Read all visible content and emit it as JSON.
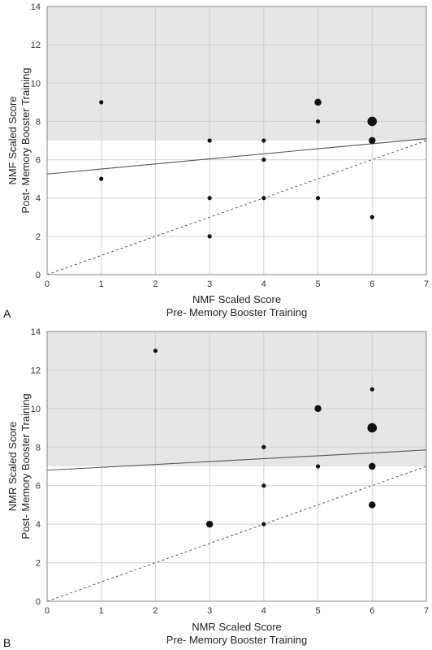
{
  "chart_data": [
    {
      "type": "scatter",
      "panel_label": "A",
      "xlabel_line1": "NMF Scaled Score",
      "xlabel_line2": "Pre- Memory Booster Training",
      "ylabel_line1": "NMF Scaled Score",
      "ylabel_line2": "Post- Memory Booster Training",
      "xlim": [
        0,
        7
      ],
      "ylim": [
        0,
        14
      ],
      "x_ticks": [
        "0",
        "1",
        "2",
        "3",
        "4",
        "5",
        "6",
        "7"
      ],
      "y_ticks": [
        "0",
        "2",
        "4",
        "6",
        "8",
        "10",
        "12",
        "14"
      ],
      "grid": true,
      "shaded_region_y_min": 7,
      "identity_line": {
        "style": "dashed",
        "from": [
          0,
          0
        ],
        "to": [
          7,
          7
        ]
      },
      "regression_line": {
        "style": "solid",
        "from": [
          0,
          5.25
        ],
        "to": [
          7,
          7.1
        ]
      },
      "points": [
        {
          "x": 1,
          "y": 9,
          "size": 1
        },
        {
          "x": 1,
          "y": 5,
          "size": 1
        },
        {
          "x": 3,
          "y": 7,
          "size": 1
        },
        {
          "x": 3,
          "y": 4,
          "size": 1
        },
        {
          "x": 3,
          "y": 2,
          "size": 1
        },
        {
          "x": 4,
          "y": 7,
          "size": 1
        },
        {
          "x": 4,
          "y": 6,
          "size": 1
        },
        {
          "x": 4,
          "y": 4,
          "size": 1
        },
        {
          "x": 5,
          "y": 9,
          "size": 2
        },
        {
          "x": 5,
          "y": 8,
          "size": 1
        },
        {
          "x": 5,
          "y": 4,
          "size": 1
        },
        {
          "x": 6,
          "y": 8,
          "size": 3
        },
        {
          "x": 6,
          "y": 7,
          "size": 2
        },
        {
          "x": 6,
          "y": 3,
          "size": 1
        }
      ]
    },
    {
      "type": "scatter",
      "panel_label": "B",
      "xlabel_line1": "NMR Scaled Score",
      "xlabel_line2": "Pre- Memory Booster Training",
      "ylabel_line1": "NMR Scaled Score",
      "ylabel_line2": "Post- Memory Booster Training",
      "xlim": [
        0,
        7
      ],
      "ylim": [
        0,
        14
      ],
      "x_ticks": [
        "0",
        "1",
        "2",
        "3",
        "4",
        "5",
        "6",
        "7"
      ],
      "y_ticks": [
        "0",
        "2",
        "4",
        "6",
        "8",
        "10",
        "12",
        "14"
      ],
      "grid": true,
      "shaded_region_y_min": 7,
      "identity_line": {
        "style": "dashed",
        "from": [
          0,
          0
        ],
        "to": [
          7,
          7
        ]
      },
      "regression_line": {
        "style": "solid",
        "from": [
          0,
          6.8
        ],
        "to": [
          7,
          7.85
        ]
      },
      "points": [
        {
          "x": 2,
          "y": 13,
          "size": 1
        },
        {
          "x": 3,
          "y": 4,
          "size": 2
        },
        {
          "x": 4,
          "y": 8,
          "size": 1
        },
        {
          "x": 4,
          "y": 6,
          "size": 1
        },
        {
          "x": 4,
          "y": 4,
          "size": 1
        },
        {
          "x": 5,
          "y": 10,
          "size": 2
        },
        {
          "x": 5,
          "y": 7,
          "size": 1
        },
        {
          "x": 6,
          "y": 11,
          "size": 1
        },
        {
          "x": 6,
          "y": 9,
          "size": 3
        },
        {
          "x": 6,
          "y": 7,
          "size": 2
        },
        {
          "x": 6,
          "y": 5,
          "size": 2
        }
      ]
    }
  ],
  "colors": {
    "shade": "#e6e6e6",
    "grid": "#d0d0d0",
    "frame": "#888888",
    "point": "#111111",
    "line": "#555555"
  }
}
